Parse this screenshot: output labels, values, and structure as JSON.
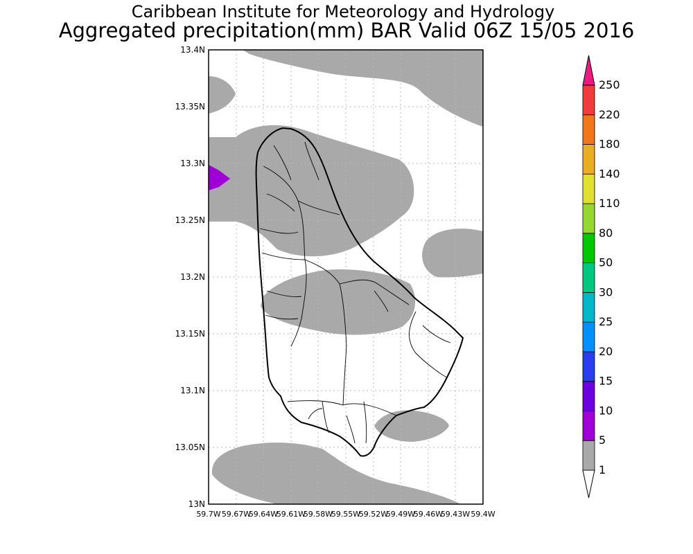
{
  "title": {
    "line1": "Caribbean Institute for Meteorology and Hydrology",
    "line2": "Aggregated precipitation(mm) BAR Valid 06Z 15/05 2016"
  },
  "map": {
    "lat_ticks": [
      "13.4N",
      "13.35N",
      "13.3N",
      "13.25N",
      "13.2N",
      "13.15N",
      "13.1N",
      "13.05N",
      "13N"
    ],
    "lon_ticks": [
      "59.7W",
      "59.67W",
      "59.64W",
      "59.61W",
      "59.58W",
      "59.55W",
      "59.52W",
      "59.49W",
      "59.46W",
      "59.43W",
      "59.4W"
    ],
    "lat_range": [
      13.0,
      13.4
    ],
    "lon_range": [
      -59.7,
      -59.4
    ],
    "grid": true,
    "precip_fill_color": "#a9a9a9",
    "high_precip_color": "#9e00d6"
  },
  "colorbar": {
    "labels": [
      "1",
      "5",
      "10",
      "15",
      "20",
      "25",
      "30",
      "50",
      "80",
      "110",
      "140",
      "180",
      "220",
      "250"
    ],
    "colors": [
      "#ffffff",
      "#a9a9a9",
      "#9e00d6",
      "#6a00e0",
      "#2a3cf0",
      "#0090ff",
      "#00b8c8",
      "#00c880",
      "#00c800",
      "#96d830",
      "#e0e030",
      "#e8b020",
      "#f07818",
      "#f03c3c",
      "#f01880"
    ],
    "placement": "right"
  }
}
